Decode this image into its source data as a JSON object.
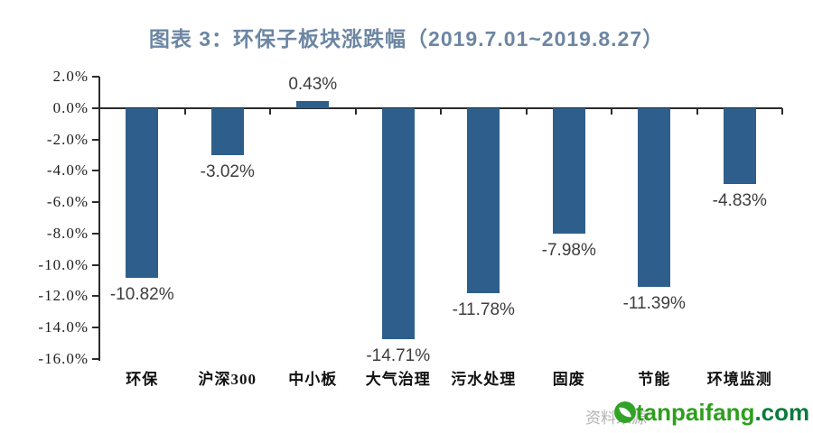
{
  "title": {
    "text": "图表 3：环保子板块涨跌幅（2019.7.01~2019.8.27）",
    "color": "#6C86A3"
  },
  "chart_data": {
    "type": "bar",
    "title": "图表 3：环保子板块涨跌幅（2019.7.01~2019.8.27）",
    "categories": [
      "环保",
      "沪深300",
      "中小板",
      "大气治理",
      "污水处理",
      "固废",
      "节能",
      "环境监测"
    ],
    "values": [
      -10.82,
      -3.02,
      0.43,
      -14.71,
      -11.78,
      -7.98,
      -11.39,
      -4.83
    ],
    "value_labels": [
      "-10.82%",
      "-3.02%",
      "0.43%",
      "-14.71%",
      "-11.78%",
      "-7.98%",
      "-11.39%",
      "-4.83%"
    ],
    "xlabel": "",
    "ylabel": "",
    "ylim": [
      -16,
      2
    ],
    "ytick_step": 2,
    "ytick_labels": [
      "2.0%",
      "0.0%",
      "-2.0%",
      "-4.0%",
      "-6.0%",
      "-8.0%",
      "-10.0%",
      "-12.0%",
      "-14.0%",
      "-16.0%"
    ],
    "grid": false,
    "legend": null,
    "bar_color": "#2E5F8C",
    "axis_color": "#2B2B2B",
    "value_label_color": "#3D3D3D",
    "tick_label_color": "#1F1F1F"
  },
  "footer": {
    "source_text": "资料来源",
    "watermark": {
      "main": "tanpaifang",
      "suffix": ".com",
      "main_color": "#2F9E1F",
      "suffix_color": "#0A7A3C",
      "logo_color": "#33A327"
    }
  }
}
